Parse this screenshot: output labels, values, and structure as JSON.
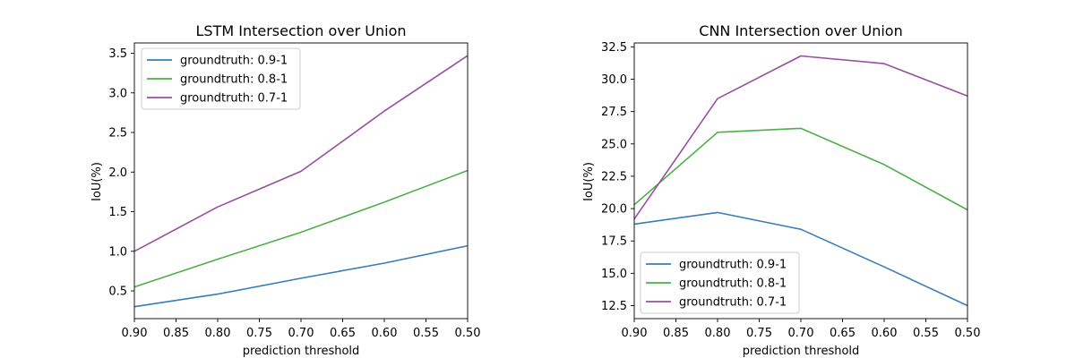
{
  "chart_data": [
    {
      "type": "line",
      "title": "LSTM Intersection over Union",
      "xlabel": "prediction threshold",
      "ylabel": "IoU(%)",
      "x": [
        0.9,
        0.8,
        0.7,
        0.6,
        0.5
      ],
      "xlim": [
        0.9,
        0.5
      ],
      "ylim": [
        0.15,
        3.63
      ],
      "xticks": [
        0.9,
        0.85,
        0.8,
        0.75,
        0.7,
        0.65,
        0.6,
        0.55,
        0.5
      ],
      "xtick_labels": [
        "0.90",
        "0.85",
        "0.80",
        "0.75",
        "0.70",
        "0.65",
        "0.60",
        "0.55",
        "0.50"
      ],
      "yticks": [
        0.5,
        1.0,
        1.5,
        2.0,
        2.5,
        3.0,
        3.5
      ],
      "ytick_labels": [
        "0.5",
        "1.0",
        "1.5",
        "2.0",
        "2.5",
        "3.0",
        "3.5"
      ],
      "legend_position": "upper-left",
      "series": [
        {
          "name": "groundtruth: 0.9-1",
          "color": "#3a7cb8",
          "values": [
            0.3,
            0.46,
            0.66,
            0.85,
            1.07
          ]
        },
        {
          "name": "groundtruth: 0.8-1",
          "color": "#4daf4a",
          "values": [
            0.55,
            0.9,
            1.24,
            1.62,
            2.02
          ]
        },
        {
          "name": "groundtruth: 0.7-1",
          "color": "#984ea3",
          "values": [
            1.0,
            1.56,
            2.01,
            2.77,
            3.47
          ]
        }
      ]
    },
    {
      "type": "line",
      "title": "CNN Intersection over Union",
      "xlabel": "prediction threshold",
      "ylabel": "IoU(%)",
      "x": [
        0.9,
        0.8,
        0.7,
        0.6,
        0.5
      ],
      "xlim": [
        0.9,
        0.5
      ],
      "ylim": [
        11.5,
        32.8
      ],
      "xticks": [
        0.9,
        0.85,
        0.8,
        0.75,
        0.7,
        0.65,
        0.6,
        0.55,
        0.5
      ],
      "xtick_labels": [
        "0.90",
        "0.85",
        "0.80",
        "0.75",
        "0.70",
        "0.65",
        "0.60",
        "0.55",
        "0.50"
      ],
      "yticks": [
        12.5,
        15.0,
        17.5,
        20.0,
        22.5,
        25.0,
        27.5,
        30.0,
        32.5
      ],
      "ytick_labels": [
        "12.5",
        "15.0",
        "17.5",
        "20.0",
        "22.5",
        "25.0",
        "27.5",
        "30.0",
        "32.5"
      ],
      "legend_position": "lower-left",
      "series": [
        {
          "name": "groundtruth: 0.9-1",
          "color": "#3a7cb8",
          "values": [
            18.8,
            19.7,
            18.4,
            15.5,
            12.5
          ]
        },
        {
          "name": "groundtruth: 0.8-1",
          "color": "#4daf4a",
          "values": [
            20.3,
            25.9,
            26.2,
            23.4,
            19.9
          ]
        },
        {
          "name": "groundtruth: 0.7-1",
          "color": "#984ea3",
          "values": [
            19.2,
            28.5,
            31.8,
            31.2,
            28.7
          ]
        }
      ]
    }
  ]
}
